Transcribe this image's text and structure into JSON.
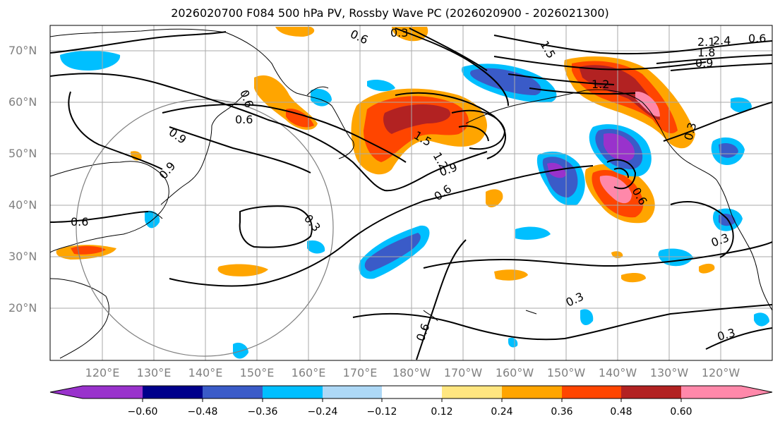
{
  "title": "2026020700 F084 500 hPa PV, Rossby Wave PC (2026020900 - 2026021300)",
  "map": {
    "lat_labels": [
      "70°N",
      "60°N",
      "50°N",
      "40°N",
      "30°N",
      "20°N"
    ],
    "lon_labels": [
      "120°E",
      "130°E",
      "140°E",
      "150°E",
      "160°E",
      "170°E",
      "180°W",
      "170°W",
      "160°W",
      "150°W",
      "140°W",
      "130°W",
      "120°W"
    ],
    "contour_labels": [
      "0.3",
      "0.6",
      "0.9",
      "1.2",
      "1.5",
      "2.1",
      "2.4",
      "1.8",
      "0.6",
      "0.9",
      "0.6",
      "0.3",
      "0.3",
      "0.6",
      "0.3",
      "0.3",
      "0.9",
      "1.2",
      "0.9",
      "1.5",
      "0.6",
      "0.6",
      "0.6",
      "0.3",
      "0.6"
    ]
  },
  "colorbar": {
    "ticks": [
      "−0.60",
      "−0.48",
      "−0.36",
      "−0.24",
      "−0.12",
      "0.12",
      "0.24",
      "0.36",
      "0.48",
      "0.60"
    ],
    "colors": [
      "#9932CC",
      "#00008B",
      "#3A5BC8",
      "#00BFFF",
      "#ADD8F6",
      "#FFFFFF",
      "#FFE680",
      "#FFA500",
      "#FF4500",
      "#B22222",
      "#FF88AA"
    ]
  }
}
